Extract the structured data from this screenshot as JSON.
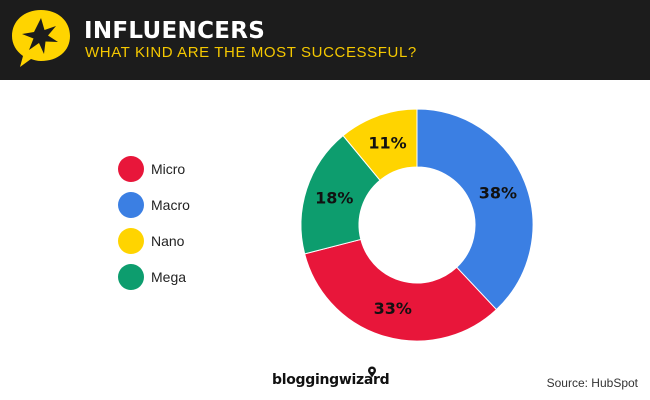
{
  "header": {
    "title": "INFLUENCERS",
    "subtitle": "WHAT KIND ARE THE MOST SUCCESSFUL?"
  },
  "chart_data": {
    "type": "pie",
    "style": "donut",
    "categories": [
      "Macro",
      "Micro",
      "Mega",
      "Nano"
    ],
    "values": [
      38,
      33,
      18,
      11
    ],
    "value_labels": [
      "38%",
      "33%",
      "18%",
      "11%"
    ],
    "colors": [
      "#3b7fe3",
      "#e8163a",
      "#0d9d6e",
      "#ffd400"
    ],
    "start_angle": "12 o'clock",
    "direction": "clockwise",
    "legend": {
      "position": "left",
      "entries": [
        {
          "label": "Micro",
          "color": "#e8163a"
        },
        {
          "label": "Macro",
          "color": "#3b7fe3"
        },
        {
          "label": "Nano",
          "color": "#ffd400"
        },
        {
          "label": "Mega",
          "color": "#0d9d6e"
        }
      ]
    }
  },
  "footer": {
    "logo_text": "bloggingwizard",
    "source": "Source: HubSpot"
  },
  "colors": {
    "header_bg": "#1c1c1c",
    "accent": "#f5c800",
    "title": "#ffffff"
  }
}
